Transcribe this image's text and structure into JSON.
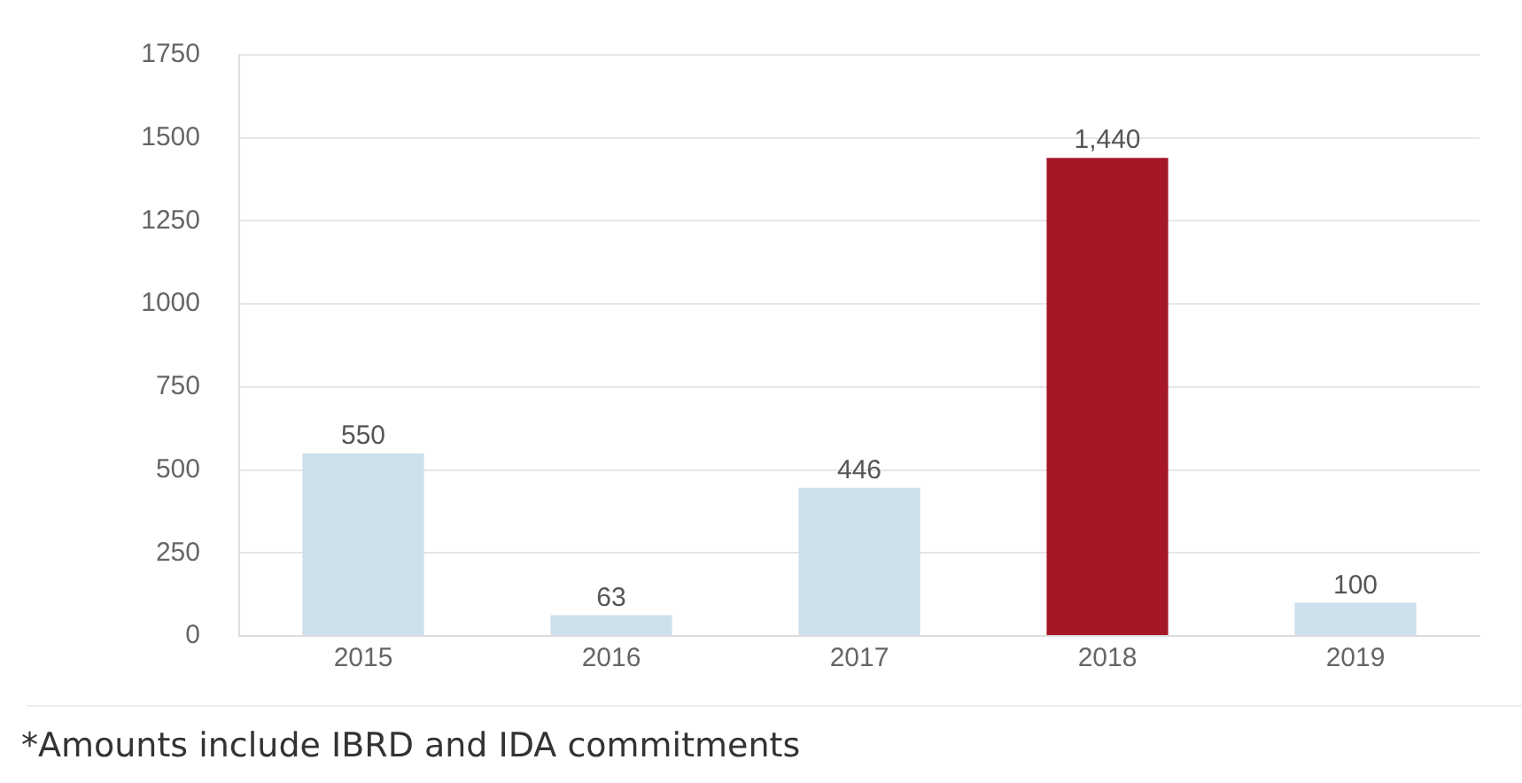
{
  "chart_data": {
    "type": "bar",
    "categories": [
      "2015",
      "2016",
      "2017",
      "2018",
      "2019"
    ],
    "values": [
      550,
      63,
      446,
      1440,
      100
    ],
    "colors": [
      "#cde0ec",
      "#cde0ec",
      "#cde0ec",
      "#a51727",
      "#cde0ec"
    ],
    "value_labels": [
      "550",
      "63",
      "446",
      "1,440",
      "100"
    ],
    "ylim": [
      0,
      1750
    ],
    "yticks": [
      0,
      250,
      500,
      750,
      1000,
      1250,
      1500,
      1750
    ],
    "grid": "y",
    "annotations": [
      "*Amounts include IBRD and IDA commitments"
    ]
  }
}
